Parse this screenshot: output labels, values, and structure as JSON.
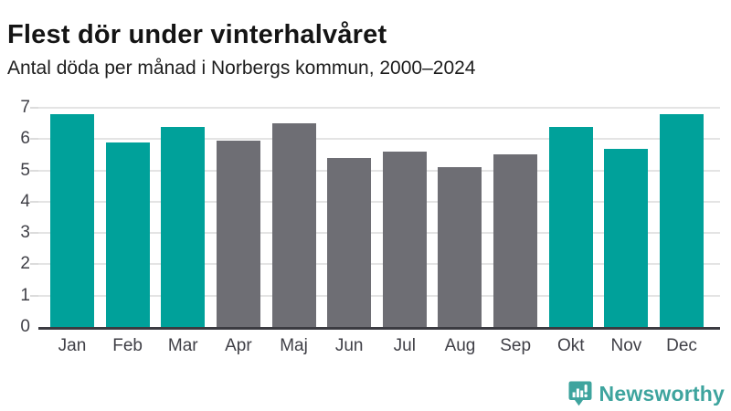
{
  "header": {
    "title": "Flest dör under vinterhalvåret",
    "subtitle": "Antal döda per månad i Norbergs kommun, 2000–2024"
  },
  "chart_data": {
    "type": "bar",
    "title": "Flest dör under vinterhalvåret",
    "subtitle": "Antal döda per månad i Norbergs kommun, 2000–2024",
    "categories": [
      "Jan",
      "Feb",
      "Mar",
      "Apr",
      "Maj",
      "Jun",
      "Jul",
      "Aug",
      "Sep",
      "Okt",
      "Nov",
      "Dec"
    ],
    "values": [
      6.8,
      5.9,
      6.4,
      5.95,
      6.5,
      5.4,
      5.6,
      5.1,
      5.5,
      6.4,
      5.7,
      6.8
    ],
    "bar_colors": [
      "teal",
      "teal",
      "teal",
      "gray",
      "gray",
      "gray",
      "gray",
      "gray",
      "gray",
      "teal",
      "teal",
      "teal"
    ],
    "xlabel": "",
    "ylabel": "",
    "ylim": [
      0,
      7
    ],
    "yticks": [
      0,
      1,
      2,
      3,
      4,
      5,
      6,
      7
    ],
    "grid": true,
    "legend": false
  },
  "colors": {
    "teal": "#00a19a",
    "gray": "#6e6e74",
    "grid": "#e4e4e4",
    "axis": "#3b3b41",
    "tick_label": "#3f3f46",
    "logo": "#3ea49e"
  },
  "footer": {
    "brand": "Newsworthy"
  }
}
